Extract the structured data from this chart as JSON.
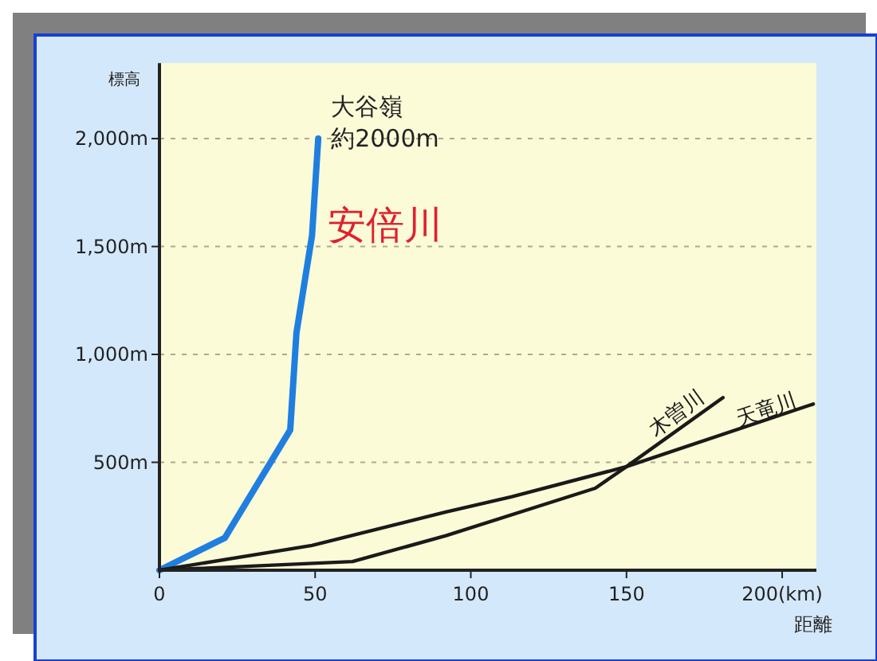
{
  "chart_data": {
    "type": "line",
    "xlabel": "距離",
    "ylabel": "標高",
    "xlim": [
      0,
      211
    ],
    "ylim": [
      0,
      2350
    ],
    "xticks": [
      0,
      50,
      100,
      150,
      {
        "value": 200,
        "label": "200(km)"
      }
    ],
    "yticks": [
      {
        "value": 500,
        "label": "500m"
      },
      {
        "value": 1000,
        "label": "1,000m"
      },
      {
        "value": 1500,
        "label": "1,500m"
      },
      {
        "value": 2000,
        "label": "2,000m"
      }
    ],
    "grid": "y",
    "marker": "none",
    "line_style": "solid",
    "series": [
      {
        "name": "安倍川",
        "color": "#1f7fe0",
        "x": [
          0,
          21,
          42,
          44,
          49,
          51
        ],
        "values": [
          0,
          150,
          650,
          1100,
          1550,
          2000
        ]
      },
      {
        "name": "木曽川",
        "color": "#1a1a1a",
        "x": [
          0,
          62,
          92,
          140,
          150,
          181
        ],
        "values": [
          0,
          40,
          160,
          380,
          480,
          800
        ]
      },
      {
        "name": "天竜川",
        "color": "#1a1a1a",
        "x": [
          0,
          49,
          92,
          113,
          150,
          210
        ],
        "values": [
          0,
          115,
          270,
          340,
          480,
          770
        ]
      }
    ],
    "annotations": [
      "大谷嶺",
      {
        "text": "約2000m",
        "x": 51,
        "y": 2000
      }
    ]
  }
}
